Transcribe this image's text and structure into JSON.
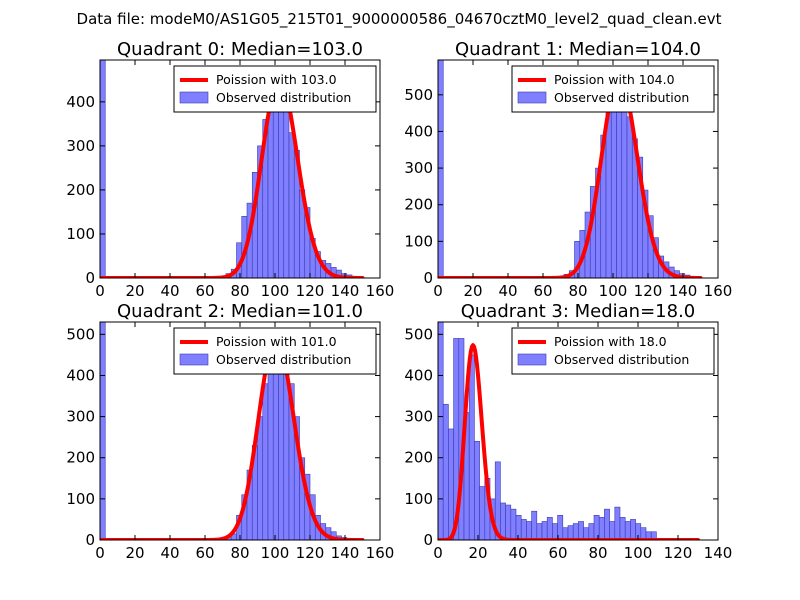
{
  "title": "Data file: modeM0/AS1G05_215T01_9000000586_04670cztM0_level2_quad_clean.evt",
  "colors": {
    "bar": "#7f7fff",
    "bar_edge": "#3a3ab0",
    "curve": "#ff0000"
  },
  "chart_data": [
    {
      "type": "bar",
      "title": "Quadrant 0: Median=103.0",
      "median": 103.0,
      "xlim": [
        0,
        160
      ],
      "ylim": [
        0,
        495
      ],
      "xticks": [
        0,
        20,
        40,
        60,
        80,
        100,
        120,
        140,
        160
      ],
      "yticks": [
        0,
        100,
        200,
        300,
        400
      ],
      "bin_width": 3,
      "bin_starts": [
        0,
        3,
        6,
        9,
        12,
        15,
        18,
        21,
        24,
        27,
        30,
        33,
        36,
        39,
        42,
        45,
        48,
        51,
        54,
        57,
        60,
        63,
        66,
        69,
        72,
        75,
        78,
        81,
        84,
        87,
        90,
        93,
        96,
        99,
        102,
        105,
        108,
        111,
        114,
        117,
        120,
        123,
        126,
        129,
        132,
        135,
        138,
        141,
        144,
        147,
        150,
        153
      ],
      "values": [
        495,
        0,
        0,
        0,
        0,
        0,
        0,
        0,
        0,
        0,
        0,
        0,
        0,
        0,
        0,
        0,
        0,
        0,
        0,
        0,
        0,
        0,
        2,
        4,
        10,
        20,
        80,
        140,
        170,
        240,
        300,
        360,
        430,
        470,
        420,
        390,
        330,
        290,
        200,
        160,
        90,
        60,
        40,
        33,
        24,
        18,
        10,
        7,
        4,
        2,
        0,
        0
      ],
      "legend": [
        "Poission with 103.0",
        "Observed distribution"
      ]
    },
    {
      "type": "bar",
      "title": "Quadrant 1: Median=104.0",
      "median": 104.0,
      "xlim": [
        0,
        160
      ],
      "ylim": [
        0,
        595
      ],
      "xticks": [
        0,
        20,
        40,
        60,
        80,
        100,
        120,
        140,
        160
      ],
      "yticks": [
        0,
        100,
        200,
        300,
        400,
        500
      ],
      "bin_width": 3,
      "bin_starts": [
        0,
        3,
        6,
        9,
        12,
        15,
        18,
        21,
        24,
        27,
        30,
        33,
        36,
        39,
        42,
        45,
        48,
        51,
        54,
        57,
        60,
        63,
        66,
        69,
        72,
        75,
        78,
        81,
        84,
        87,
        90,
        93,
        96,
        99,
        102,
        105,
        108,
        111,
        114,
        117,
        120,
        123,
        126,
        129,
        132,
        135,
        138,
        141,
        144,
        147,
        150,
        153
      ],
      "values": [
        595,
        0,
        0,
        0,
        0,
        0,
        0,
        0,
        0,
        0,
        0,
        0,
        0,
        0,
        0,
        0,
        0,
        0,
        0,
        0,
        0,
        0,
        2,
        4,
        10,
        20,
        100,
        130,
        180,
        250,
        300,
        390,
        450,
        530,
        570,
        500,
        440,
        380,
        330,
        240,
        170,
        110,
        60,
        44,
        30,
        20,
        12,
        8,
        4,
        2,
        0,
        0
      ],
      "legend": [
        "Poission with 104.0",
        "Observed distribution"
      ]
    },
    {
      "type": "bar",
      "title": "Quadrant 2: Median=101.0",
      "median": 101.0,
      "xlim": [
        0,
        160
      ],
      "ylim": [
        0,
        530
      ],
      "xticks": [
        0,
        20,
        40,
        60,
        80,
        100,
        120,
        140,
        160
      ],
      "yticks": [
        0,
        100,
        200,
        300,
        400,
        500
      ],
      "bin_width": 3,
      "bin_starts": [
        0,
        3,
        6,
        9,
        12,
        15,
        18,
        21,
        24,
        27,
        30,
        33,
        36,
        39,
        42,
        45,
        48,
        51,
        54,
        57,
        60,
        63,
        66,
        69,
        72,
        75,
        78,
        81,
        84,
        87,
        90,
        93,
        96,
        99,
        102,
        105,
        108,
        111,
        114,
        117,
        120,
        123,
        126,
        129,
        132,
        135,
        138,
        141,
        144,
        147,
        150,
        153
      ],
      "values": [
        530,
        0,
        0,
        0,
        0,
        0,
        0,
        0,
        0,
        0,
        0,
        0,
        0,
        0,
        0,
        0,
        0,
        0,
        0,
        0,
        0,
        0,
        2,
        4,
        8,
        15,
        60,
        110,
        170,
        230,
        300,
        380,
        440,
        510,
        500,
        440,
        380,
        300,
        200,
        160,
        110,
        60,
        40,
        30,
        20,
        10,
        6,
        4,
        2,
        0,
        0,
        0
      ],
      "legend": [
        "Poission with 101.0",
        "Observed distribution"
      ]
    },
    {
      "type": "bar",
      "title": "Quadrant 3: Median=18.0",
      "median": 18.0,
      "xlim": [
        0,
        140
      ],
      "ylim": [
        0,
        530
      ],
      "xticks": [
        0,
        20,
        40,
        60,
        80,
        100,
        120,
        140
      ],
      "yticks": [
        0,
        100,
        200,
        300,
        400,
        500
      ],
      "bin_width": 2.6,
      "bin_starts": [
        0,
        2.6,
        5.2,
        7.8,
        10.4,
        13,
        15.6,
        18.2,
        20.8,
        23.4,
        26,
        28.6,
        31.2,
        33.8,
        36.4,
        39,
        41.6,
        44.2,
        46.8,
        49.4,
        52,
        54.6,
        57.2,
        59.8,
        62.4,
        65,
        67.6,
        70.2,
        72.8,
        75.4,
        78,
        80.6,
        83.2,
        85.8,
        88.4,
        91,
        93.6,
        96.2,
        98.8,
        101.4,
        104,
        106.6
      ],
      "values": [
        530,
        330,
        270,
        490,
        490,
        310,
        450,
        240,
        130,
        150,
        100,
        190,
        90,
        85,
        75,
        60,
        50,
        45,
        70,
        40,
        45,
        55,
        40,
        60,
        30,
        35,
        40,
        45,
        30,
        40,
        60,
        55,
        75,
        45,
        80,
        55,
        45,
        50,
        40,
        30,
        20,
        20
      ],
      "legend": [
        "Poission with 18.0",
        "Observed distribution"
      ]
    }
  ]
}
